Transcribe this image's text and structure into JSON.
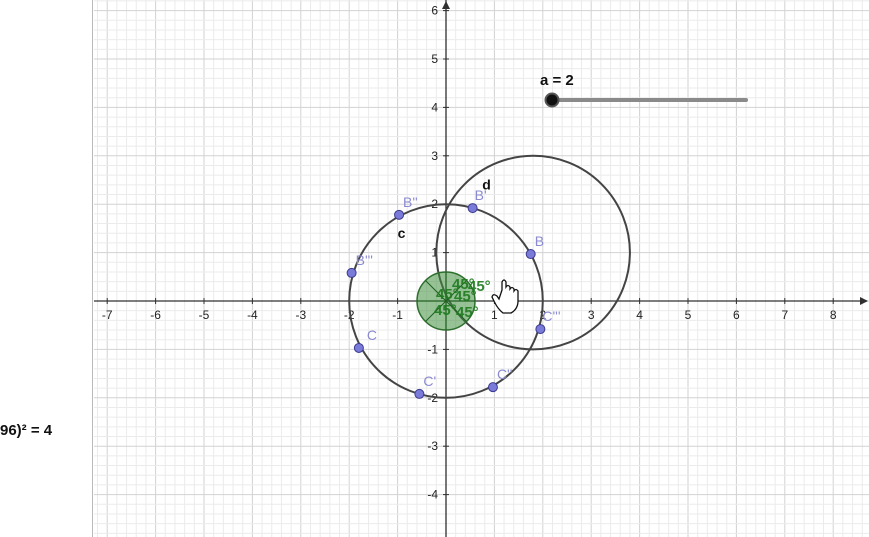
{
  "algebra_view": {
    "equation_fragment": "96)² = 4"
  },
  "axes": {
    "x_ticks": [
      "-7",
      "-6",
      "-5",
      "-4",
      "-3",
      "-2",
      "-1",
      "1",
      "2",
      "3",
      "4",
      "5",
      "6",
      "7",
      "8"
    ],
    "y_ticks": [
      "6",
      "5",
      "4",
      "3",
      "2",
      "1",
      "-1",
      "-2",
      "-3",
      "-4"
    ]
  },
  "slider": {
    "label": "a = 2",
    "value": 2
  },
  "curves": {
    "circle_c_label": "c",
    "circle_d_label": "d",
    "circle_c": {
      "center": [
        0,
        0
      ],
      "radius": 2
    },
    "circle_d": {
      "center": [
        1.8,
        1
      ],
      "radius": 2
    }
  },
  "points": [
    {
      "name": "B",
      "x": 1.75,
      "y": 0.97
    },
    {
      "name": "B'",
      "x": 0.55,
      "y": 1.92
    },
    {
      "name": "B''",
      "x": -0.97,
      "y": 1.78
    },
    {
      "name": "B'''",
      "x": -1.95,
      "y": 0.58
    },
    {
      "name": "C",
      "x": -1.8,
      "y": -0.97
    },
    {
      "name": "C'",
      "x": -0.55,
      "y": -1.92
    },
    {
      "name": "C''",
      "x": 0.97,
      "y": -1.78
    },
    {
      "name": "C'''",
      "x": 1.95,
      "y": -0.58
    }
  ],
  "angle_labels": [
    "45°",
    "45°",
    "45°",
    "45°",
    "45°",
    "45°"
  ],
  "colors": {
    "grid_minor": "#ebebeb",
    "grid_major": "#d2d2d2",
    "axis": "#303030",
    "circle": "#444444",
    "point_fill": "#7a7ad8",
    "point_label": "#8a8ad0",
    "angle_fill": "#3f8f3f",
    "angle_text": "#1e7a1e"
  }
}
